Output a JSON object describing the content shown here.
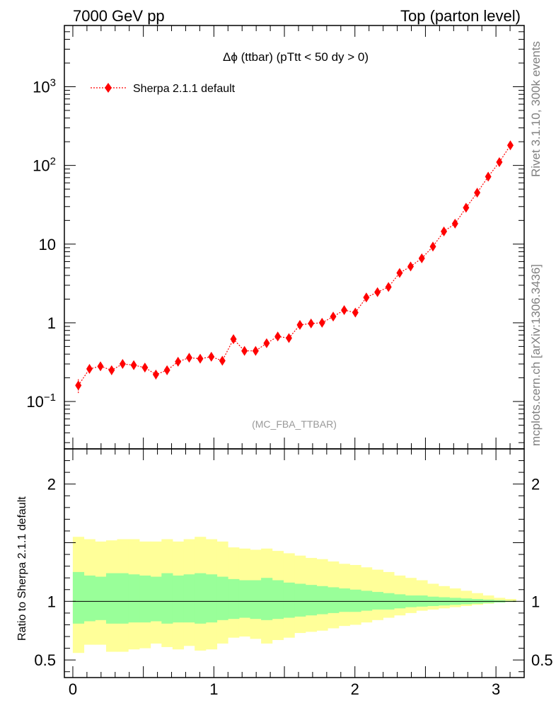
{
  "header": {
    "left": "7000 GeV pp",
    "right": "Top (parton level)"
  },
  "side": {
    "top": "Rivet 3.1.10,  300k events",
    "bottom": "mcplots.cern.ch [arXiv:1306.3436]"
  },
  "chart_data": [
    {
      "type": "scatter",
      "title": "Δϕ (ttbar) (pTtt < 50 dy > 0)",
      "watermark": "(MC_FBA_TTBAR)",
      "yscale": "log",
      "xlim": [
        -0.06,
        3.2
      ],
      "ylim": [
        0.025,
        6000
      ],
      "legend_position": "top-left",
      "series": [
        {
          "name": "Sherpa 2.1.1 default",
          "color": "#ff0000",
          "marker": "diamond",
          "line": "dotted",
          "x": [
            0.039,
            0.118,
            0.196,
            0.275,
            0.353,
            0.432,
            0.511,
            0.589,
            0.668,
            0.746,
            0.825,
            0.903,
            0.982,
            1.06,
            1.139,
            1.217,
            1.296,
            1.374,
            1.453,
            1.532,
            1.61,
            1.689,
            1.767,
            1.846,
            1.924,
            2.003,
            2.081,
            2.16,
            2.238,
            2.317,
            2.395,
            2.474,
            2.553,
            2.631,
            2.71,
            2.788,
            2.867,
            2.945,
            3.024,
            3.102
          ],
          "y": [
            0.16,
            0.26,
            0.28,
            0.25,
            0.3,
            0.29,
            0.27,
            0.22,
            0.25,
            0.32,
            0.36,
            0.35,
            0.37,
            0.33,
            0.62,
            0.44,
            0.44,
            0.55,
            0.67,
            0.64,
            0.94,
            0.98,
            1.0,
            1.2,
            1.45,
            1.35,
            2.1,
            2.45,
            2.85,
            4.3,
            5.2,
            6.6,
            9.3,
            14.5,
            18.2,
            29,
            45,
            72,
            110,
            180
          ],
          "err_rel": [
            0.2,
            0.12,
            0.12,
            0.13,
            0.12,
            0.12,
            0.12,
            0.13,
            0.13,
            0.12,
            0.11,
            0.11,
            0.11,
            0.11,
            0.1,
            0.1,
            0.1,
            0.09,
            0.09,
            0.09,
            0.08,
            0.08,
            0.08,
            0.07,
            0.07,
            0.07,
            0.06,
            0.06,
            0.06,
            0.05,
            0.05,
            0.05,
            0.04,
            0.04,
            0.04,
            0.03,
            0.03,
            0.03,
            0.03,
            0.02
          ]
        }
      ],
      "yticks": [
        "10^-1",
        "1",
        "10",
        "10^2",
        "10^3"
      ]
    },
    {
      "type": "area",
      "ylabel": "Ratio to Sherpa 2.1.1 default",
      "xlim": [
        -0.06,
        3.2
      ],
      "ylim": [
        0.35,
        2.3
      ],
      "xticks": [
        "0",
        "1",
        "2",
        "3"
      ],
      "yticks": [
        "0.5",
        "1",
        "2"
      ],
      "reference_line": 1,
      "bands": [
        {
          "name": "2-sigma",
          "color": "#ffff99",
          "upper": [
            1.55,
            1.53,
            1.51,
            1.52,
            1.53,
            1.53,
            1.51,
            1.51,
            1.53,
            1.51,
            1.53,
            1.55,
            1.53,
            1.51,
            1.46,
            1.45,
            1.44,
            1.45,
            1.43,
            1.41,
            1.39,
            1.37,
            1.36,
            1.34,
            1.32,
            1.31,
            1.29,
            1.27,
            1.25,
            1.22,
            1.2,
            1.18,
            1.15,
            1.13,
            1.11,
            1.09,
            1.07,
            1.05,
            1.03,
            1.02
          ],
          "lower": [
            0.56,
            0.63,
            0.63,
            0.57,
            0.57,
            0.59,
            0.6,
            0.64,
            0.61,
            0.59,
            0.62,
            0.58,
            0.59,
            0.64,
            0.69,
            0.7,
            0.68,
            0.64,
            0.67,
            0.69,
            0.73,
            0.74,
            0.75,
            0.77,
            0.79,
            0.8,
            0.82,
            0.84,
            0.86,
            0.88,
            0.9,
            0.92,
            0.93,
            0.94,
            0.95,
            0.96,
            0.97,
            0.98,
            0.99,
            0.995
          ]
        },
        {
          "name": "1-sigma",
          "color": "#99ff99",
          "upper": [
            1.25,
            1.22,
            1.21,
            1.24,
            1.24,
            1.23,
            1.22,
            1.21,
            1.24,
            1.22,
            1.23,
            1.24,
            1.23,
            1.21,
            1.19,
            1.18,
            1.18,
            1.2,
            1.18,
            1.16,
            1.15,
            1.14,
            1.13,
            1.12,
            1.11,
            1.1,
            1.09,
            1.08,
            1.07,
            1.06,
            1.05,
            1.05,
            1.04,
            1.035,
            1.03,
            1.025,
            1.02,
            1.015,
            1.01,
            1.005
          ],
          "lower": [
            0.81,
            0.83,
            0.84,
            0.81,
            0.81,
            0.82,
            0.82,
            0.83,
            0.81,
            0.82,
            0.82,
            0.81,
            0.82,
            0.84,
            0.85,
            0.86,
            0.85,
            0.84,
            0.85,
            0.86,
            0.87,
            0.88,
            0.89,
            0.9,
            0.91,
            0.91,
            0.92,
            0.93,
            0.93,
            0.94,
            0.95,
            0.955,
            0.96,
            0.965,
            0.97,
            0.975,
            0.98,
            0.985,
            0.99,
            0.995
          ]
        }
      ]
    }
  ]
}
